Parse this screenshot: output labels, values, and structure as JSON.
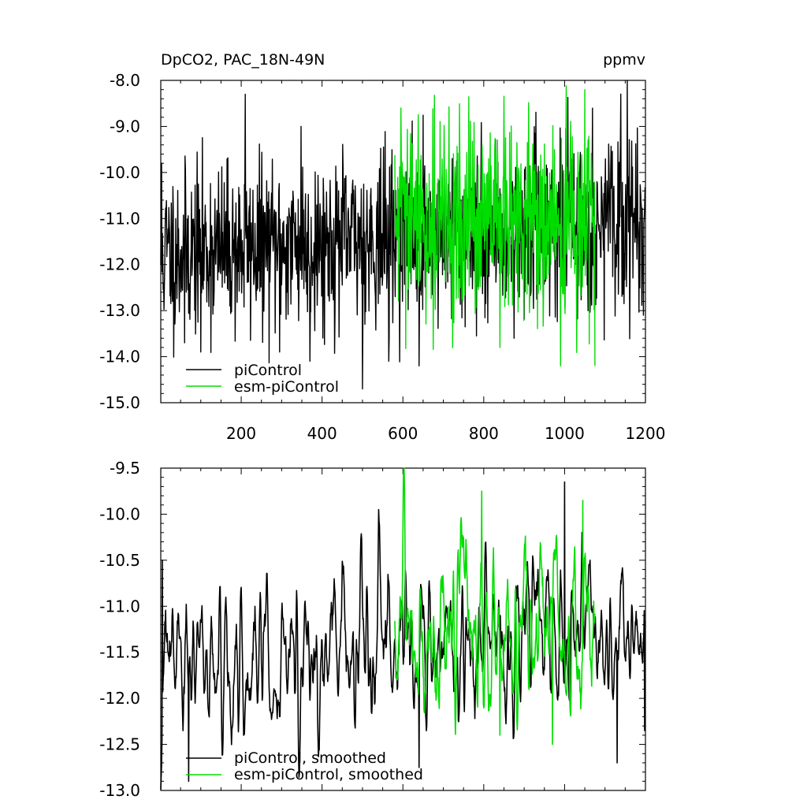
{
  "chart_data": [
    {
      "type": "line",
      "title": "DpCO2, PAC_18N-49N",
      "units": "ppmv",
      "xlim": [
        1,
        1200
      ],
      "ylim": [
        -15.0,
        -8.0
      ],
      "x_ticks": [
        200,
        400,
        600,
        800,
        1000,
        1200
      ],
      "y_ticks": [
        -15.0,
        -14.0,
        -13.0,
        -12.0,
        -11.0,
        -10.0,
        -9.0,
        -8.0
      ],
      "legend_position": "bottom-left",
      "series": [
        {
          "name": "piControl",
          "color": "#000000",
          "x_range": [
            1,
            1200
          ],
          "mean": -11.4,
          "std": 0.9,
          "trend_per_step": 0.0006,
          "seed": 11,
          "notable_points": [
            [
              3,
              -9.8
            ],
            [
              60,
              -13.7
            ],
            [
              100,
              -13.9
            ],
            [
              210,
              -8.3
            ],
            [
              295,
              -13.9
            ],
            [
              348,
              -9.0
            ],
            [
              370,
              -14.1
            ],
            [
              500,
              -14.7
            ],
            [
              565,
              -14.1
            ],
            [
              640,
              -14.2
            ],
            [
              1155,
              -8.0
            ],
            [
              1195,
              -13.1
            ]
          ]
        },
        {
          "name": "esm-piControl",
          "color": "#00dd00",
          "x_range": [
            580,
            1075
          ],
          "mean": -11.1,
          "std": 1.05,
          "trend_per_step": 0.0,
          "seed": 29,
          "notable_points": [
            [
              595,
              -8.6
            ],
            [
              840,
              -13.8
            ],
            [
              990,
              -14.2
            ],
            [
              1050,
              -8.2
            ],
            [
              1075,
              -14.2
            ]
          ]
        }
      ]
    },
    {
      "type": "line",
      "xlim": [
        1,
        1200
      ],
      "ylim": [
        -13.0,
        -9.5
      ],
      "x_ticks": [
        200,
        400,
        600,
        800,
        1000,
        1200
      ],
      "y_ticks": [
        -13.0,
        -12.5,
        -12.0,
        -11.5,
        -11.0,
        -10.5,
        -10.0,
        -9.5
      ],
      "legend_position": "bottom-left",
      "series": [
        {
          "name": "piControl, smoothed",
          "color": "#000000",
          "x_range": [
            1,
            1200
          ],
          "mean": -11.45,
          "std": 0.42,
          "trend_per_step": 0.0003,
          "seed": 47,
          "notable_points": [
            [
              5,
              -10.5
            ],
            [
              70,
              -12.9
            ],
            [
              540,
              -9.95
            ],
            [
              640,
              -12.75
            ],
            [
              1000,
              -9.65
            ],
            [
              1130,
              -12.7
            ],
            [
              1198,
              -12.35
            ]
          ]
        },
        {
          "name": "esm-piControl, smoothed",
          "color": "#00dd00",
          "x_range": [
            580,
            1075
          ],
          "mean": -11.25,
          "std": 0.5,
          "trend_per_step": 0.0,
          "seed": 83,
          "notable_points": [
            [
              795,
              -9.75
            ],
            [
              840,
              -12.4
            ],
            [
              970,
              -12.5
            ],
            [
              1045,
              -9.85
            ]
          ]
        }
      ]
    }
  ]
}
